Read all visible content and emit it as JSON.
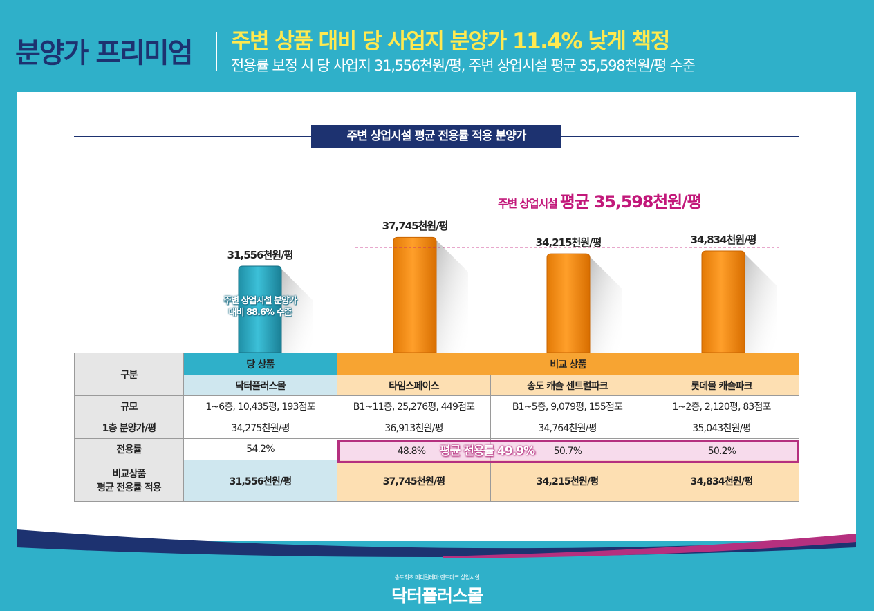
{
  "header": {
    "main_title": "분양가 프리미엄",
    "headline": "주변 상품 대비 당 사업지 분양가 11.4% 낮게 책정",
    "subline": "전용률 보정 시 당 사업지 31,556천원/평,  주변 상업시설 평균 35,598천원/평 수준"
  },
  "chart_data": {
    "type": "bar",
    "title": "주변 상업시설 평균 전용률 적용 분양가",
    "categories": [
      "닥터플러스몰",
      "타임스페이스",
      "송도 캐슬 센트럴파크",
      "롯데몰 캐슬파크"
    ],
    "values": [
      31556,
      37745,
      34215,
      34834
    ],
    "data_labels": [
      "31,556천원/평",
      "37,745천원/평",
      "34,215천원/평",
      "34,834천원/평"
    ],
    "unit": "천원/평",
    "average": {
      "value": 35598,
      "label_prefix": "주변 상업시설",
      "label_main": "평균 35,598천원/평"
    },
    "bar_note": [
      "주변 상업시설 분양가",
      "대비 88.6% 수준"
    ],
    "colors": {
      "ours": "#2fb0c9",
      "comparison": "#f58a14",
      "average_line": "#c2187a"
    }
  },
  "table": {
    "corner": "구분",
    "group_ours": "당 상품",
    "group_comparison": "비교 상품",
    "products": [
      "닥터플러스몰",
      "타임스페이스",
      "송도 캐슬 센트럴파크",
      "롯데몰 캐슬파크"
    ],
    "rows": [
      {
        "label": "규모",
        "values": [
          "1~6층, 10,435평, 193점포",
          "B1~11층, 25,276평, 449점포",
          "B1~5층, 9,079평, 155점포",
          "1~2층, 2,120평, 83점포"
        ]
      },
      {
        "label": "1층 분양가/평",
        "values": [
          "34,275천원/평",
          "36,913천원/평",
          "34,764천원/평",
          "35,043천원/평"
        ]
      },
      {
        "label": "전용률",
        "values": [
          "54.2%",
          "48.8%",
          "50.7%",
          "50.2%"
        ]
      }
    ],
    "last_row": {
      "label_line1": "비교상품",
      "label_line2": "평균 전용률 적용",
      "values": [
        "31,556천원/평",
        "37,745천원/평",
        "34,215천원/평",
        "34,834천원/평"
      ]
    },
    "ratio_average": "평균 전용률 49.9%"
  },
  "footer": {
    "tagline": "송도최초 메디컬테마 랜드마크 상업시설",
    "logo": "닥터플러스몰"
  }
}
